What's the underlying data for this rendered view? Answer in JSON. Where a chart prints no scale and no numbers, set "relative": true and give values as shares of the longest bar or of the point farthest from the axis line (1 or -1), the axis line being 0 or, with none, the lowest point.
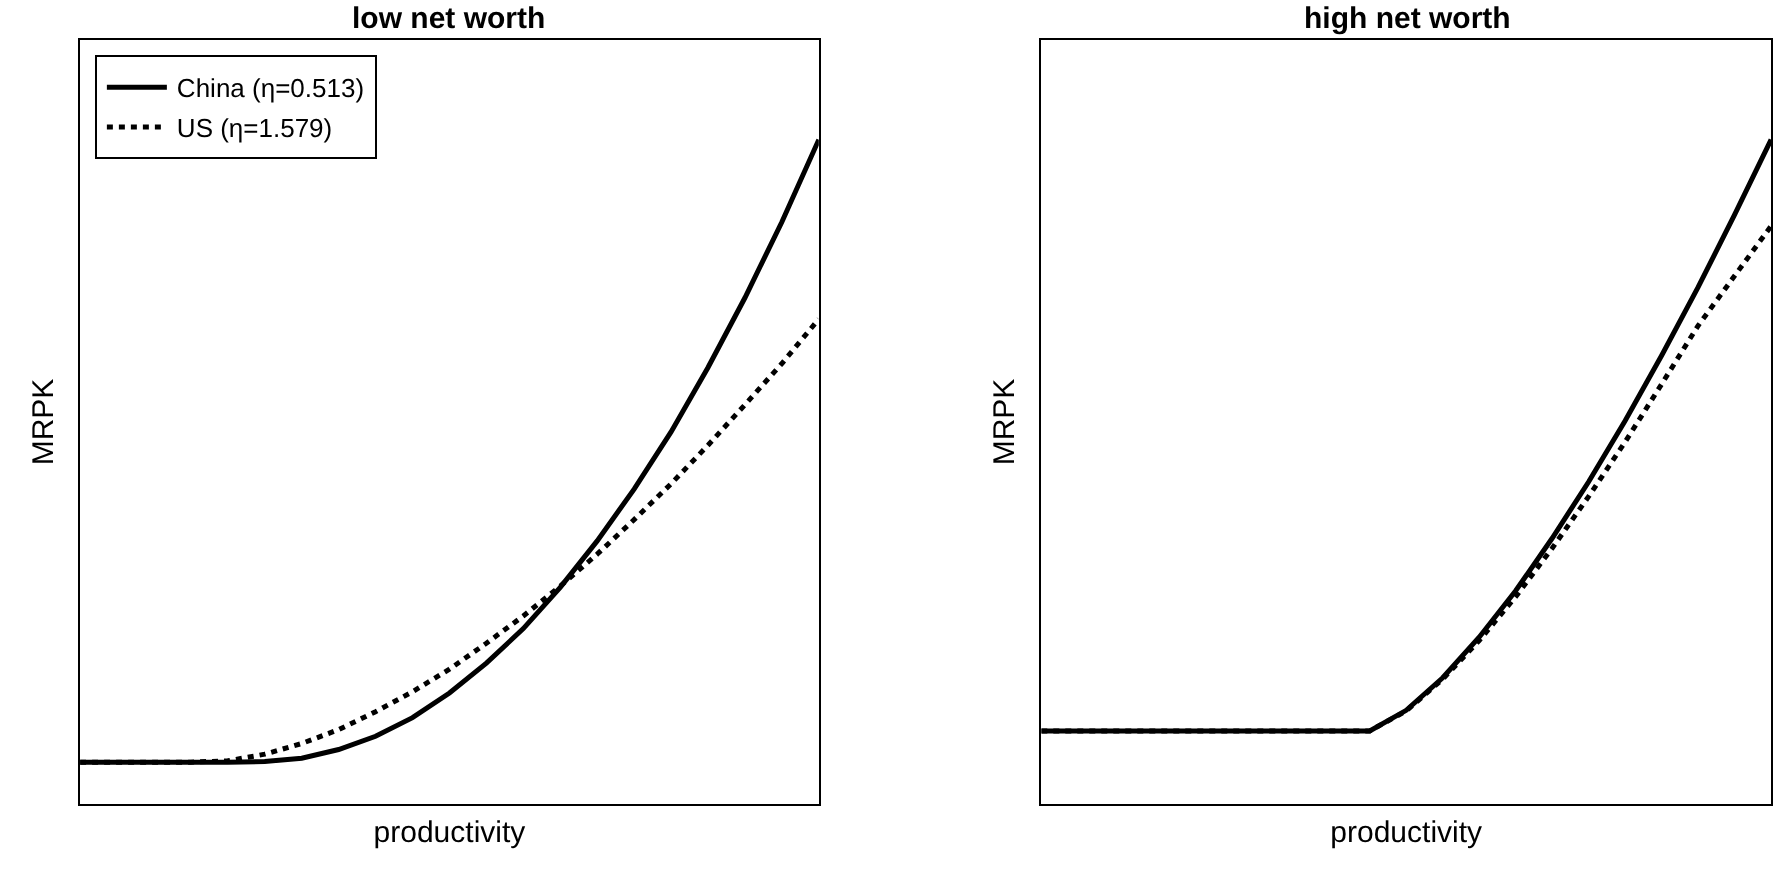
{
  "chart_data": [
    {
      "type": "line",
      "title": "low net worth",
      "xlabel": "productivity",
      "ylabel": "MRPK",
      "relative": true,
      "legend": "top left",
      "categories": [
        null,
        null,
        null,
        null,
        null,
        null,
        null,
        null,
        null,
        null,
        null,
        null,
        null,
        null,
        null,
        null,
        null,
        null,
        null,
        null,
        null
      ],
      "series": [
        {
          "name": "China (η=0.513)",
          "color": "#000000",
          "line_style": "solid",
          "values": [
            0.063,
            0.063,
            0.063,
            0.063,
            0.063,
            0.064,
            0.069,
            0.082,
            0.102,
            0.13,
            0.167,
            0.212,
            0.264,
            0.326,
            0.396,
            0.474,
            0.56,
            0.657,
            0.762,
            0.876,
            1.0
          ]
        },
        {
          "name": "US (η=1.579)",
          "color": "#000000",
          "line_style": "dotted",
          "values": [
            0.063,
            0.063,
            0.063,
            0.063,
            0.065,
            0.075,
            0.091,
            0.112,
            0.139,
            0.169,
            0.203,
            0.242,
            0.283,
            0.328,
            0.376,
            0.428,
            0.482,
            0.54,
            0.601,
            0.663,
            0.73
          ]
        }
      ]
    },
    {
      "type": "line",
      "title": "high net worth",
      "xlabel": "productivity",
      "ylabel": "MRPK",
      "relative": true,
      "categories": [
        null,
        null,
        null,
        null,
        null,
        null,
        null,
        null,
        null,
        null,
        null,
        null,
        null,
        null,
        null,
        null,
        null,
        null,
        null,
        null,
        null
      ],
      "series": [
        {
          "color": "#000000",
          "line_style": "solid",
          "values": [
            0.11,
            0.11,
            0.11,
            0.11,
            0.11,
            0.11,
            0.11,
            0.11,
            0.11,
            0.11,
            0.141,
            0.19,
            0.251,
            0.321,
            0.4,
            0.485,
            0.577,
            0.675,
            0.778,
            0.887,
            1.0
          ]
        },
        {
          "color": "#000000",
          "line_style": "dotted",
          "values": [
            0.11,
            0.11,
            0.11,
            0.11,
            0.11,
            0.11,
            0.11,
            0.11,
            0.11,
            0.11,
            0.14,
            0.188,
            0.246,
            0.312,
            0.385,
            0.463,
            0.545,
            0.632,
            0.72,
            0.795,
            0.87
          ]
        }
      ]
    }
  ]
}
